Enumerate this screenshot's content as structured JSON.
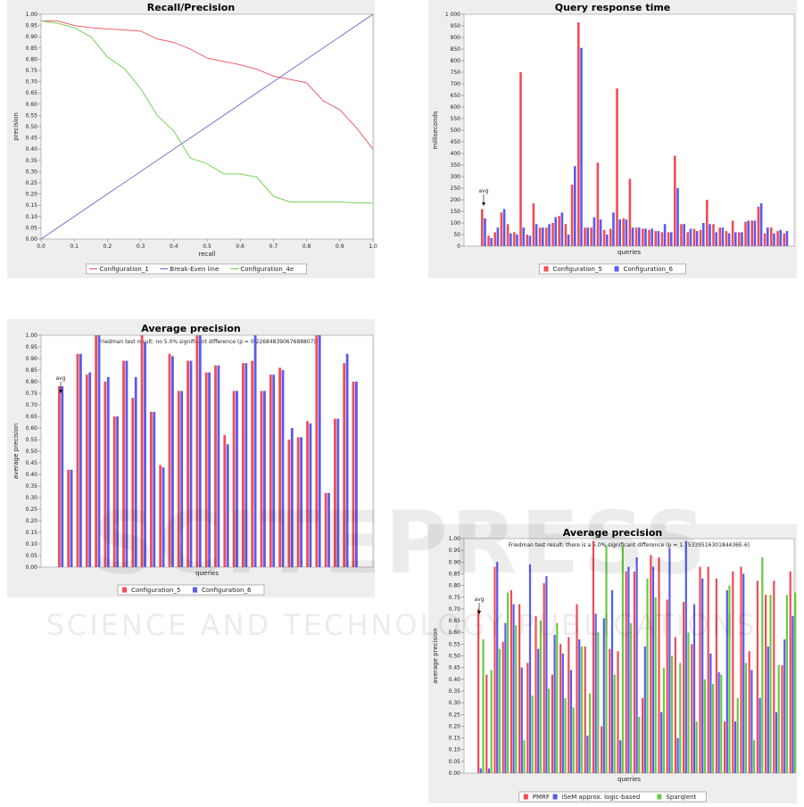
{
  "colors": {
    "red": "#f04d55",
    "blue": "#5a5af0",
    "green": "#66cc44",
    "diag": "#6666cc",
    "panel": "#eeeeee",
    "watermark": "#d8d8d8"
  },
  "watermark": {
    "big": "SCITEPRESS",
    "sub": "SCIENCE AND TECHNOLOGY PUBLICATIONS"
  },
  "chart_data": [
    {
      "type": "line",
      "title": "Recall/Precision",
      "xlabel": "recall",
      "ylabel": "precision",
      "xlim": [
        0,
        1
      ],
      "ylim": [
        0,
        1
      ],
      "xticks": [
        "0.0",
        "0.1",
        "0.2",
        "0.3",
        "0.4",
        "0.5",
        "0.6",
        "0.7",
        "0.8",
        "0.9",
        "1.0"
      ],
      "series": [
        {
          "name": "Configuration_1",
          "color": "#f04d55",
          "x": [
            0,
            0.05,
            0.1,
            0.15,
            0.2,
            0.25,
            0.3,
            0.35,
            0.4,
            0.45,
            0.5,
            0.55,
            0.6,
            0.65,
            0.7,
            0.75,
            0.8,
            0.85,
            0.9,
            0.95,
            1.0
          ],
          "y": [
            0.97,
            0.97,
            0.95,
            0.94,
            0.935,
            0.93,
            0.925,
            0.89,
            0.875,
            0.845,
            0.805,
            0.79,
            0.775,
            0.755,
            0.725,
            0.71,
            0.695,
            0.615,
            0.575,
            0.495,
            0.4
          ]
        },
        {
          "name": "Break-Even line",
          "color": "#6666cc",
          "x": [
            0,
            1
          ],
          "y": [
            0,
            1
          ]
        },
        {
          "name": "Configuration_4e",
          "color": "#66cc44",
          "x": [
            0,
            0.05,
            0.1,
            0.15,
            0.2,
            0.25,
            0.3,
            0.35,
            0.4,
            0.45,
            0.5,
            0.55,
            0.6,
            0.65,
            0.7,
            0.75,
            0.8,
            0.85,
            0.9,
            0.95,
            1.0
          ],
          "y": [
            0.97,
            0.96,
            0.94,
            0.9,
            0.81,
            0.76,
            0.67,
            0.55,
            0.48,
            0.36,
            0.335,
            0.29,
            0.29,
            0.275,
            0.19,
            0.165,
            0.165,
            0.165,
            0.165,
            0.16,
            0.16
          ]
        }
      ],
      "legend": "bottom"
    },
    {
      "type": "bar",
      "title": "Query response time",
      "xlabel": "queries",
      "ylabel": "milliseconds",
      "ylim": [
        0,
        1000
      ],
      "avg_label": "avg",
      "series": [
        {
          "name": "Configuration_5",
          "color": "#f04d55",
          "values": [
            160,
            45,
            60,
            145,
            95,
            60,
            750,
            50,
            185,
            80,
            80,
            100,
            130,
            95,
            265,
            965,
            80,
            80,
            360,
            70,
            75,
            680,
            120,
            290,
            80,
            75,
            70,
            65,
            60,
            60,
            390,
            95,
            60,
            75,
            70,
            200,
            95,
            80,
            65,
            110,
            60,
            105,
            110,
            170,
            55,
            80,
            65,
            55
          ]
        },
        {
          "name": "Configuration_6",
          "color": "#5a5af0",
          "values": [
            120,
            35,
            80,
            160,
            55,
            50,
            80,
            45,
            95,
            80,
            95,
            125,
            145,
            50,
            345,
            855,
            80,
            125,
            115,
            50,
            145,
            115,
            115,
            80,
            80,
            75,
            75,
            65,
            95,
            60,
            250,
            95,
            75,
            65,
            100,
            95,
            60,
            80,
            55,
            60,
            60,
            110,
            110,
            185,
            80,
            55,
            70,
            65
          ]
        }
      ],
      "legend": "bottom"
    },
    {
      "type": "bar",
      "title": "Average precision",
      "xlabel": "queries",
      "ylabel": "average precision",
      "ylim": [
        0,
        1
      ],
      "note": "Friedman test result: no 5.0% significant difference (p = 0.22684839067688807)",
      "avg_label": "avg",
      "series": [
        {
          "name": "Configuration_5",
          "color": "#f04d55",
          "values": [
            0.78,
            0.42,
            0.92,
            0.83,
            1.0,
            0.8,
            0.65,
            0.89,
            0.73,
            1.0,
            0.67,
            0.44,
            0.92,
            0.76,
            0.89,
            1.0,
            0.84,
            0.87,
            0.57,
            0.76,
            0.88,
            0.89,
            0.76,
            0.83,
            0.86,
            0.55,
            0.56,
            0.63,
            1.0,
            0.32,
            0.64,
            0.88,
            0.8
          ]
        },
        {
          "name": "Configuration_6",
          "color": "#5a5af0",
          "values": [
            0.78,
            0.42,
            0.92,
            0.84,
            1.0,
            0.82,
            0.65,
            0.89,
            0.82,
            0.97,
            0.67,
            0.43,
            0.91,
            0.76,
            0.89,
            1.0,
            0.84,
            0.87,
            0.53,
            0.76,
            0.88,
            1.0,
            0.76,
            0.83,
            0.85,
            0.6,
            0.56,
            0.62,
            1.0,
            0.32,
            0.64,
            0.92,
            0.8
          ]
        }
      ],
      "legend": "bottom"
    },
    {
      "type": "bar",
      "title": "Average precision",
      "xlabel": "queries",
      "ylabel": "average precision",
      "ylim": [
        0,
        1
      ],
      "note": "Friedman test result: there is a 5.0% significant difference (p = 1.7533951630184436E-6)",
      "avg_label": "avg",
      "series": [
        {
          "name": "PMRF",
          "color": "#f04d55",
          "values": [
            0.7,
            0.42,
            0.88,
            0.56,
            0.78,
            0.72,
            0.47,
            0.67,
            0.81,
            0.42,
            0.55,
            0.58,
            0.72,
            0.54,
            0.99,
            0.2,
            0.53,
            0.52,
            0.86,
            0.86,
            0.32,
            0.93,
            0.92,
            0.74,
            0.58,
            0.73,
            0.55,
            0.88,
            0.88,
            0.83,
            0.22,
            0.86,
            0.88,
            0.52,
            0.82,
            0.76,
            0.82,
            0.46,
            0.86
          ]
        },
        {
          "name": "iSeM approx. logic-based",
          "color": "#5a5af0",
          "values": [
            0.02,
            0.02,
            0.9,
            0.64,
            0.72,
            0.45,
            0.89,
            0.53,
            0.84,
            0.59,
            0.51,
            0.44,
            0.57,
            0.16,
            0.68,
            0.66,
            0.78,
            0.14,
            0.88,
            0.92,
            0.54,
            0.88,
            0.26,
            0.96,
            0.15,
            0.99,
            0.72,
            0.83,
            0.51,
            0.43,
            0.78,
            0.22,
            0.85,
            0.44,
            0.32,
            0.54,
            0.26,
            0.57,
            0.67
          ]
        },
        {
          "name": "Sparqlent",
          "color": "#66cc44",
          "values": [
            0.57,
            0.44,
            0.53,
            0.77,
            0.63,
            0.14,
            0.33,
            0.65,
            0.36,
            0.64,
            0.32,
            0.28,
            0.54,
            0.34,
            0.6,
            0.97,
            0.42,
            0.97,
            0.64,
            0.24,
            0.83,
            0.75,
            0.45,
            0.5,
            0.47,
            0.6,
            0.22,
            0.4,
            0.38,
            0.42,
            0.8,
            0.32,
            0.47,
            0.14,
            0.92,
            0.76,
            0.46,
            0.76,
            0.77
          ]
        }
      ],
      "legend": "bottom"
    }
  ]
}
